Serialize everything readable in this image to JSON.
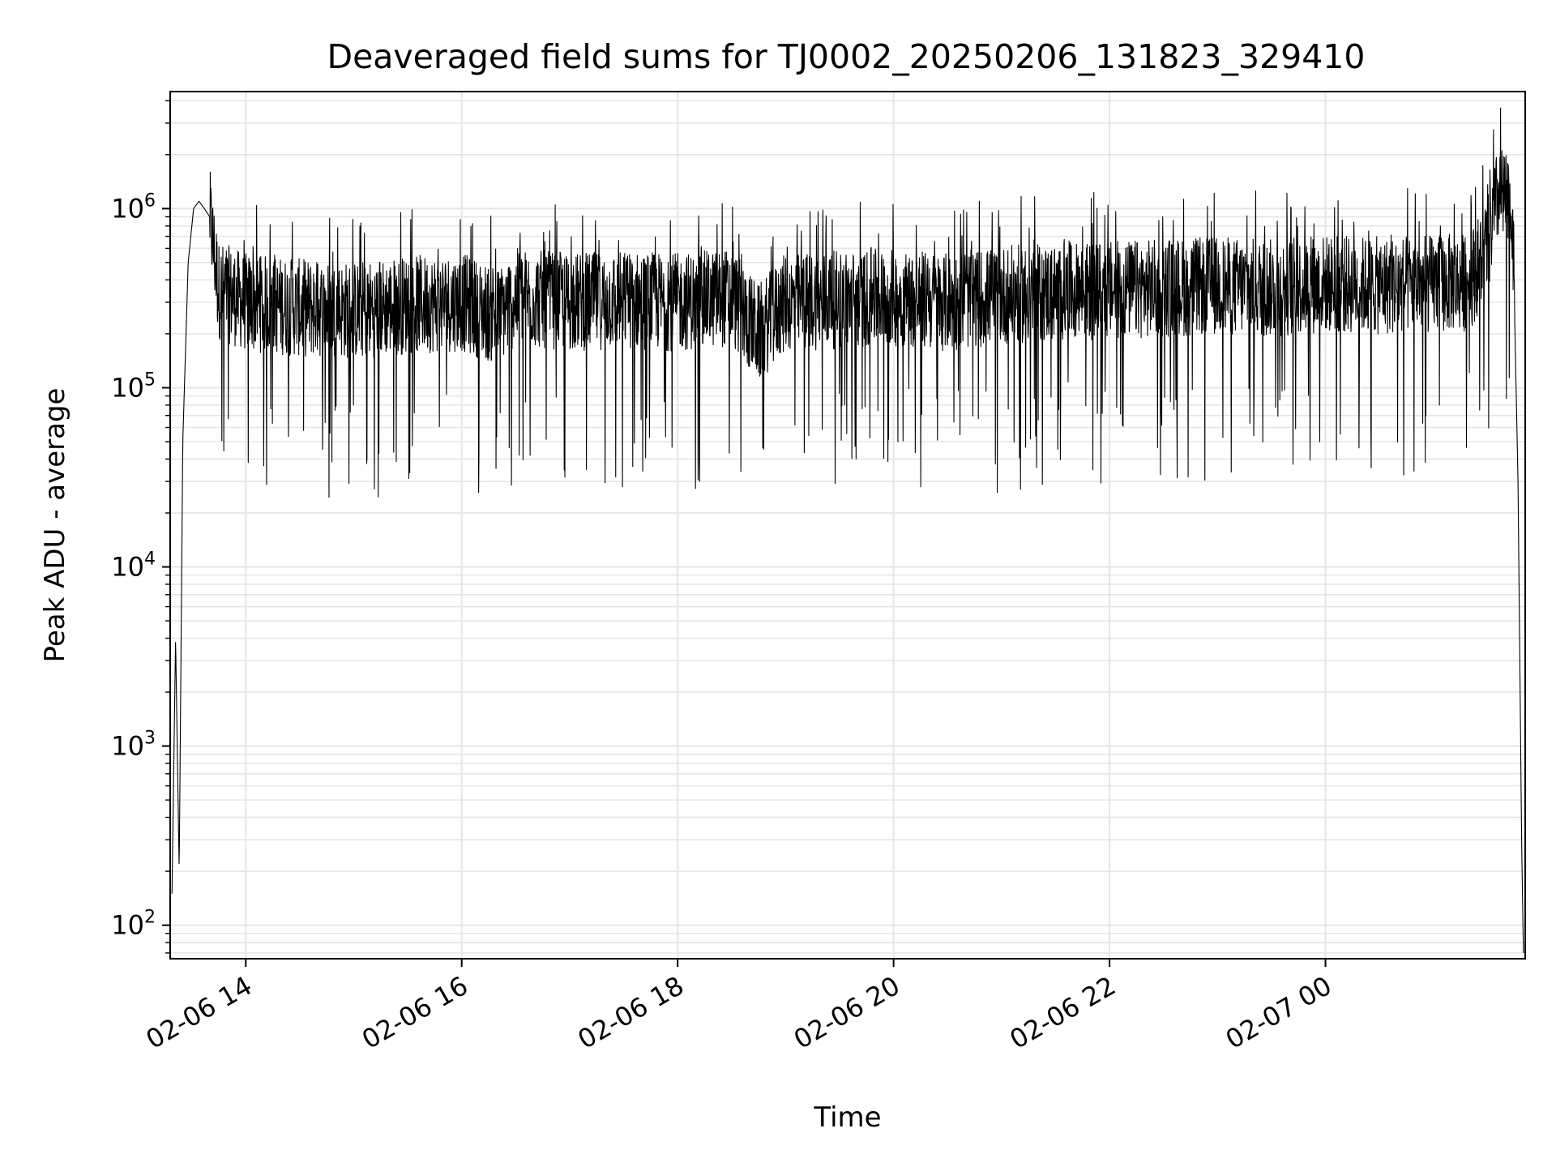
{
  "chart_data": {
    "type": "line",
    "title": "Deaveraged field sums for TJ0002_20250206_131823_329410",
    "xlabel": "Time",
    "ylabel": "Peak ADU - average",
    "yscale": "log",
    "ylim": [
      65,
      4500000
    ],
    "xlim": [
      "2025-02-06 13:18",
      "2025-02-07 01:51"
    ],
    "grid": true,
    "x_ticks": [
      {
        "t": "2025-02-06 14:00",
        "label": "02-06 14"
      },
      {
        "t": "2025-02-06 16:00",
        "label": "02-06 16"
      },
      {
        "t": "2025-02-06 18:00",
        "label": "02-06 18"
      },
      {
        "t": "2025-02-06 20:00",
        "label": "02-06 20"
      },
      {
        "t": "2025-02-06 22:00",
        "label": "02-06 22"
      },
      {
        "t": "2025-02-07 00:00",
        "label": "02-07 00"
      }
    ],
    "y_ticks": [
      {
        "value": 100,
        "base": "10",
        "exp": "2"
      },
      {
        "value": 1000,
        "base": "10",
        "exp": "3"
      },
      {
        "value": 10000,
        "base": "10",
        "exp": "4"
      },
      {
        "value": 100000,
        "base": "10",
        "exp": "5"
      },
      {
        "value": 1000000,
        "base": "10",
        "exp": "6"
      }
    ],
    "line_color": "#000000",
    "grid_color": "#e5e5e5",
    "series": [
      {
        "x": [
          "2025-02-06 13:19",
          "2025-02-06 13:21",
          "2025-02-06 13:23",
          "2025-02-06 13:25",
          "2025-02-06 13:28",
          "2025-02-06 13:31",
          "2025-02-06 13:34",
          "2025-02-06 13:37",
          "2025-02-06 13:40",
          "2025-02-06 13:45",
          "2025-02-06 14:00",
          "2025-02-06 14:30",
          "2025-02-06 15:00",
          "2025-02-06 15:30",
          "2025-02-06 16:00",
          "2025-02-06 16:20",
          "2025-02-06 16:30",
          "2025-02-06 17:00",
          "2025-02-06 17:30",
          "2025-02-06 18:00",
          "2025-02-06 18:30",
          "2025-02-06 18:45",
          "2025-02-06 19:00",
          "2025-02-06 19:30",
          "2025-02-06 20:00",
          "2025-02-06 20:30",
          "2025-02-06 21:00",
          "2025-02-06 21:30",
          "2025-02-06 22:00",
          "2025-02-06 22:30",
          "2025-02-06 23:00",
          "2025-02-06 23:30",
          "2025-02-07 00:00",
          "2025-02-07 00:30",
          "2025-02-07 01:00",
          "2025-02-07 01:20",
          "2025-02-07 01:30",
          "2025-02-07 01:36",
          "2025-02-07 01:40",
          "2025-02-07 01:44",
          "2025-02-07 01:47",
          "2025-02-07 01:49",
          "2025-02-07 01:50"
        ],
        "y": [
          150,
          4000,
          200,
          50000,
          500000,
          1000000,
          1100000,
          1000000,
          900000,
          350000,
          300000,
          280000,
          270000,
          290000,
          300000,
          250000,
          320000,
          300000,
          310000,
          300000,
          320000,
          200000,
          300000,
          310000,
          320000,
          300000,
          330000,
          340000,
          350000,
          360000,
          370000,
          360000,
          380000,
          370000,
          380000,
          390000,
          600000,
          1200000,
          1100000,
          900000,
          30000,
          300,
          70
        ]
      }
    ]
  }
}
